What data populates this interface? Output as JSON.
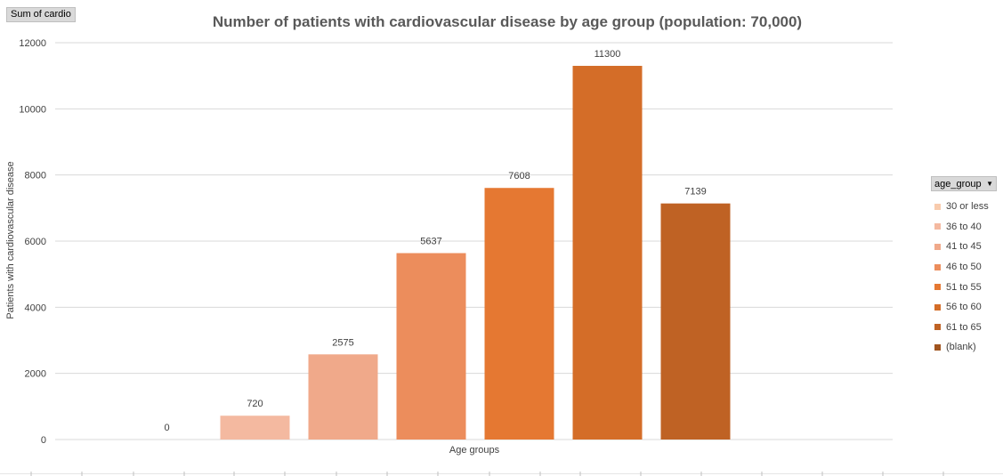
{
  "field_button": {
    "label": "Sum of cardio"
  },
  "chart_data": {
    "type": "bar",
    "title": "Number of patients with cardiovascular disease by age group (population: 70,000)",
    "xlabel": "Age groups",
    "ylabel": "Patients with cardiovascular disease",
    "ylim": [
      0,
      12000
    ],
    "yticks": [
      0,
      2000,
      4000,
      6000,
      8000,
      10000,
      12000
    ],
    "grid": true,
    "legend_position": "right",
    "legend_title": "age_group",
    "categories": [
      "30 or less",
      "36 to 40",
      "41 to 45",
      "46 to 50",
      "51 to 55",
      "56 to 60",
      "61 to 65",
      "(blank)"
    ],
    "values": [
      0,
      720,
      2575,
      5637,
      7608,
      11300,
      7139,
      null
    ],
    "data_labels": [
      "0",
      "720",
      "2575",
      "5637",
      "7608",
      "11300",
      "7139",
      ""
    ],
    "colors": [
      "#F8CBAD",
      "#F4B9A0",
      "#F0A98A",
      "#EC8D5C",
      "#E57832",
      "#D46D28",
      "#BF6224",
      "#A0541F"
    ]
  }
}
